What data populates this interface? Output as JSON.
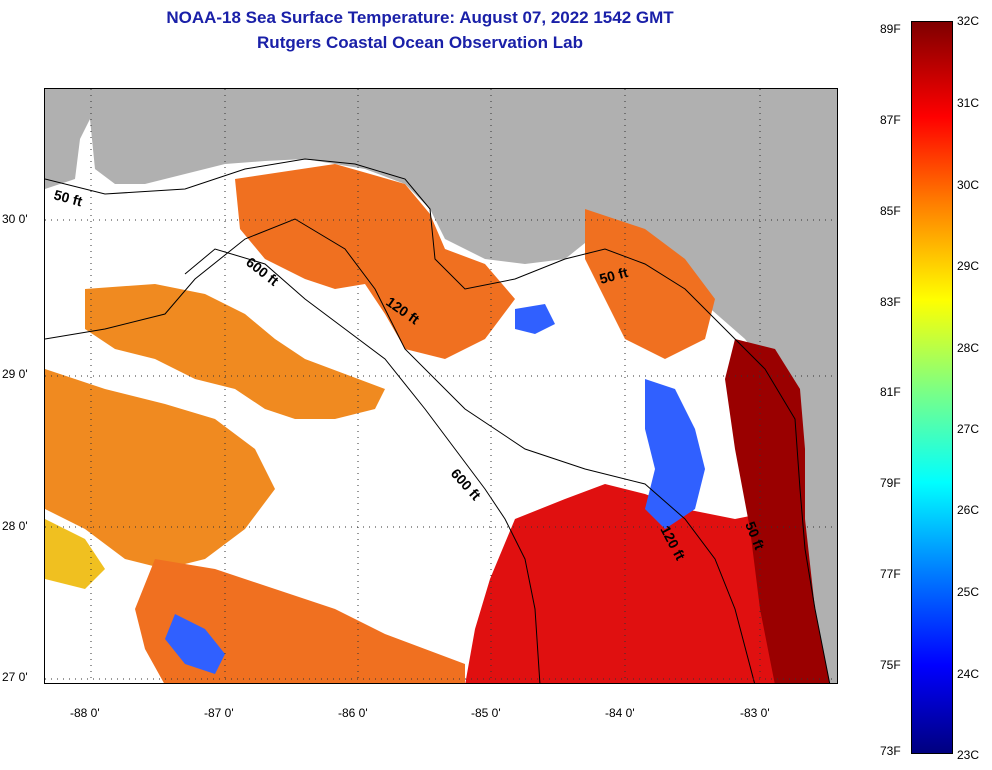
{
  "header": {
    "title_line1": "NOAA-18 Sea Surface Temperature:  August 07, 2022 1542 GMT",
    "title_line2": "Rutgers Coastal Ocean Observation Lab"
  },
  "map": {
    "lat_labels": [
      "30 0'",
      "29 0'",
      "28 0'",
      "27 0'"
    ],
    "lon_labels": [
      "-88 0'",
      "-87 0'",
      "-86 0'",
      "-85 0'",
      "-84 0'",
      "-83 0'"
    ],
    "contour_labels": [
      "50 ft",
      "600 ft",
      "120 ft",
      "50 ft",
      "600 ft",
      "120 ft",
      "50 ft"
    ],
    "colors": {
      "land": "#b0b0b0",
      "cloud": "#ffffff",
      "warm": "#f07020",
      "hot": "#e01010",
      "hottest": "#9a0000",
      "cool": "#3060ff",
      "mild": "#f0c020"
    }
  },
  "colorbar": {
    "fahrenheit_labels": [
      "89F",
      "87F",
      "85F",
      "83F",
      "81F",
      "79F",
      "77F",
      "75F",
      "73F"
    ],
    "celsius_labels": [
      "32C",
      "31C",
      "30C",
      "29C",
      "28C",
      "27C",
      "26C",
      "25C",
      "24C",
      "23C"
    ]
  }
}
